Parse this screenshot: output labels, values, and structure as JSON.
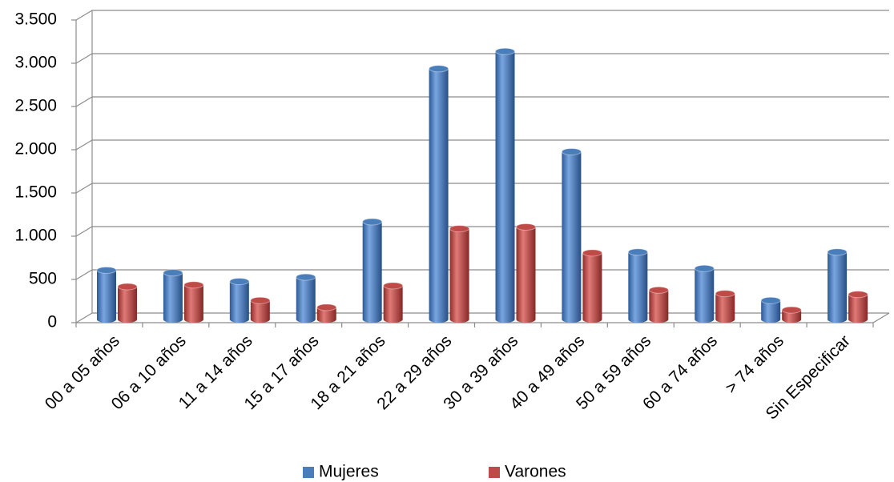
{
  "chart_data": {
    "type": "bar",
    "categories": [
      "00 a 05 años",
      "06 a 10 años",
      "11 a 14 años",
      "15 a 17 años",
      "18 a 21 años",
      "22 a 29 años",
      "30 a 39 años",
      "40 a 49 años",
      "50 a 59 años",
      "60 a 74 años",
      "> 74 años",
      "Sin Especificar"
    ],
    "series": [
      {
        "name": "Mujeres",
        "color": "#4a7ebb",
        "values": [
          570,
          540,
          440,
          490,
          1130,
          2900,
          3100,
          1940,
          780,
          590,
          220,
          780
        ]
      },
      {
        "name": "Varones",
        "color": "#be4b48",
        "values": [
          380,
          400,
          220,
          140,
          390,
          1050,
          1070,
          770,
          340,
          300,
          110,
          290
        ]
      }
    ],
    "ylim": [
      0,
      3500
    ],
    "yticks": [
      0,
      500,
      {
        "value": 1000,
        "label": "1.000"
      },
      {
        "value": 1500,
        "label": "1.500"
      },
      {
        "value": 2000,
        "label": "2.000"
      },
      {
        "value": 2500,
        "label": "2.500"
      },
      {
        "value": 3000,
        "label": "3.000"
      },
      {
        "value": 3500,
        "label": "3.500"
      }
    ],
    "grid": true,
    "legend": "bottom"
  }
}
